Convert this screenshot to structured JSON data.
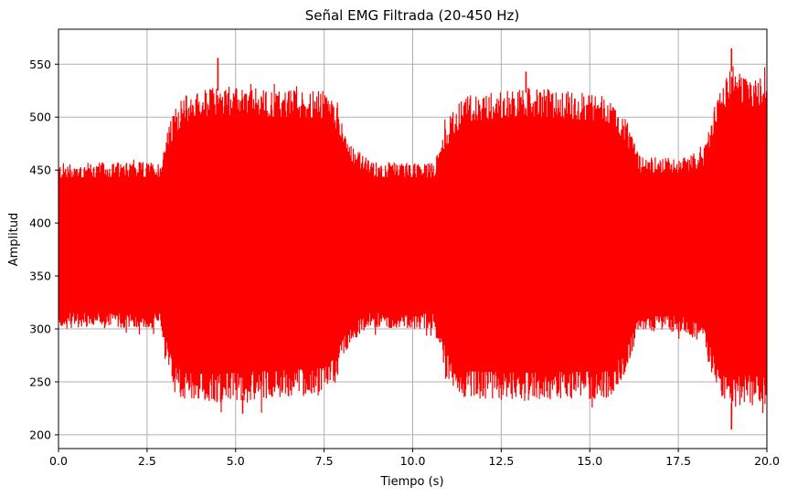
{
  "chart_data": {
    "type": "line",
    "title": "Señal EMG Filtrada (20-450 Hz)",
    "xlabel": "Tiempo (s)",
    "ylabel": "Amplitud",
    "xlim": [
      0,
      20
    ],
    "ylim": [
      187,
      583
    ],
    "xticks": [
      "0.0",
      "2.5",
      "5.0",
      "7.5",
      "10.0",
      "12.5",
      "15.0",
      "17.5",
      "20.0"
    ],
    "yticks": [
      "200",
      "250",
      "300",
      "350",
      "400",
      "450",
      "500",
      "550"
    ],
    "grid": true,
    "series": [
      {
        "color": "#ff0000",
        "envelope": {
          "x": [
            0,
            2.9,
            3.0,
            3.3,
            3.6,
            4.5,
            5.0,
            7.5,
            7.8,
            8.2,
            8.8,
            10.6,
            10.8,
            11.1,
            11.5,
            13.2,
            15.5,
            16.0,
            16.4,
            17.6,
            18.2,
            18.6,
            19.0,
            19.5,
            20.0
          ],
          "upper": [
            457,
            458,
            480,
            510,
            522,
            530,
            528,
            525,
            516,
            478,
            458,
            457,
            480,
            505,
            522,
            528,
            522,
            500,
            463,
            462,
            470,
            520,
            548,
            538,
            540
          ],
          "lower": [
            301,
            300,
            275,
            240,
            232,
            230,
            232,
            237,
            248,
            285,
            301,
            300,
            275,
            243,
            234,
            232,
            234,
            255,
            297,
            297,
            285,
            240,
            225,
            228,
            225
          ]
        },
        "peaks": [
          {
            "x": 4.5,
            "y": 556
          },
          {
            "x": 13.2,
            "y": 543
          },
          {
            "x": 19.0,
            "y": 565
          },
          {
            "x": 19.0,
            "y": 205
          },
          {
            "x": 5.2,
            "y": 220
          }
        ]
      }
    ]
  }
}
